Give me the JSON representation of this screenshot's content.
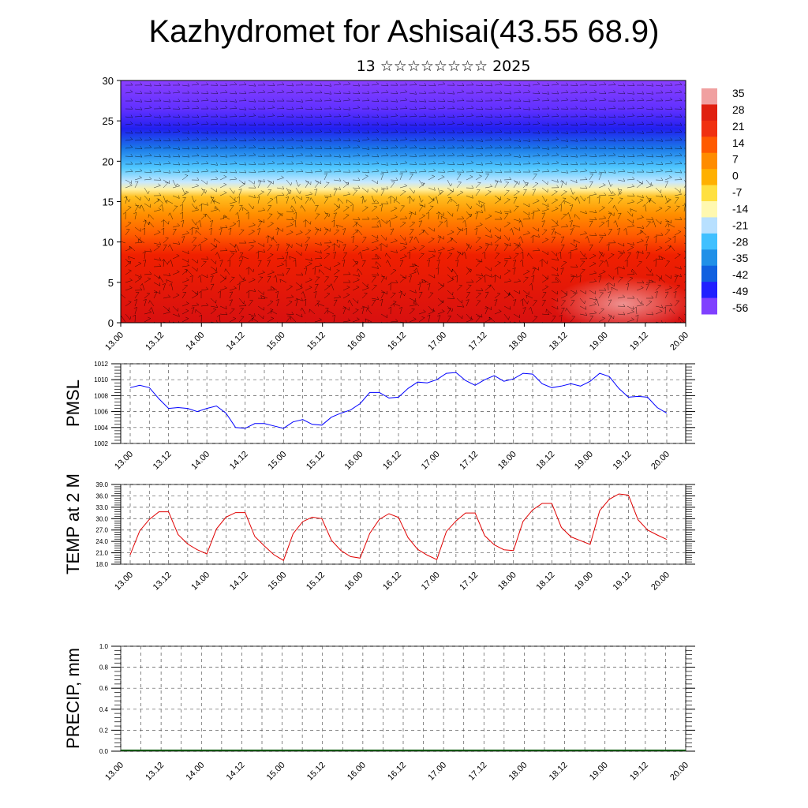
{
  "header": {
    "title": "Kazhydromet for Ashisai(43.55 68.9)",
    "subtitle": "13 ☆☆☆☆☆☆☆☆ 2025"
  },
  "time_labels": [
    "13.00",
    "13.12",
    "14.00",
    "14.12",
    "15.00",
    "15.12",
    "16.00",
    "16.12",
    "17.00",
    "17.12",
    "18.00",
    "18.12",
    "19.00",
    "19.12",
    "20.00"
  ],
  "colors": {
    "pmsl_line": "#0000ff",
    "temp_line": "#e00000",
    "precip_line": "#005500",
    "grid": "#555555"
  },
  "chart_data": [
    {
      "type": "heatmap",
      "title": "",
      "ylim": [
        0,
        30
      ],
      "y_ticks": [
        0,
        5,
        10,
        15,
        20,
        25,
        30
      ],
      "x_ticks": [
        "13.00",
        "13.12",
        "14.00",
        "14.12",
        "15.00",
        "15.12",
        "16.00",
        "16.12",
        "17.00",
        "17.12",
        "18.00",
        "18.12",
        "19.00",
        "19.12",
        "20.00"
      ],
      "colorbar_labels": [
        "35",
        "28",
        "21",
        "14",
        "7",
        "0",
        "-7",
        "-14",
        "-21",
        "-28",
        "-35",
        "-42",
        "-49",
        "-56"
      ],
      "colorbar_colors": [
        "#f0a0a0",
        "#e02010",
        "#f03010",
        "#ff5a00",
        "#ff8c00",
        "#ffb000",
        "#ffe040",
        "#fff8b0",
        "#b8e0ff",
        "#40c0ff",
        "#2090e8",
        "#1060e0",
        "#2020ff",
        "#8040ff"
      ],
      "overlay": "wind barbs"
    },
    {
      "type": "line",
      "ylabel": "PMSL",
      "ylim": [
        1002,
        1012
      ],
      "y_ticks": [
        1002,
        1004,
        1006,
        1008,
        1010,
        1012
      ],
      "x_ticks": [
        "13.00",
        "13.12",
        "14.00",
        "14.12",
        "15.00",
        "15.12",
        "16.00",
        "16.12",
        "17.00",
        "17.12",
        "18.00",
        "18.12",
        "19.00",
        "19.12",
        "20.00"
      ],
      "series": [
        {
          "values": [
            1009.0,
            1009.3,
            1009.0,
            1007.6,
            1006.4,
            1006.5,
            1006.4,
            1006.0,
            1006.4,
            1006.7,
            1005.8,
            1004.0,
            1003.9,
            1004.5,
            1004.5,
            1004.2,
            1003.9,
            1004.7,
            1005.0,
            1004.4,
            1004.3,
            1005.3,
            1005.8,
            1006.2,
            1007.0,
            1008.4,
            1008.4,
            1007.7,
            1007.8,
            1008.9,
            1009.7,
            1009.6,
            1010.0,
            1010.8,
            1010.9,
            1009.9,
            1009.3,
            1010.0,
            1010.5,
            1009.8,
            1010.1,
            1010.8,
            1010.7,
            1009.5,
            1009.0,
            1009.2,
            1009.5,
            1009.2,
            1009.8,
            1010.8,
            1010.4,
            1008.9,
            1007.8,
            1007.9,
            1007.8,
            1006.5,
            1005.8
          ]
        }
      ]
    },
    {
      "type": "line",
      "ylabel": "TEMP at 2 M",
      "ylim": [
        18.0,
        39.0
      ],
      "y_ticks": [
        "18.0",
        "21.0",
        "24.0",
        "27.0",
        "30.0",
        "33.0",
        "36.0",
        "39.0"
      ],
      "x_ticks": [
        "13.00",
        "13.12",
        "14.00",
        "14.12",
        "15.00",
        "15.12",
        "16.00",
        "16.12",
        "17.00",
        "17.12",
        "18.00",
        "18.12",
        "19.00",
        "19.12",
        "20.00"
      ],
      "series": [
        {
          "values": [
            20.5,
            26.8,
            29.8,
            31.8,
            31.8,
            25.8,
            23.3,
            21.8,
            20.7,
            27.3,
            30.4,
            31.6,
            31.6,
            25.3,
            22.8,
            20.5,
            19.0,
            26.0,
            29.2,
            30.4,
            30.0,
            24.3,
            21.6,
            20.0,
            19.6,
            26.1,
            29.8,
            31.3,
            30.3,
            25.0,
            21.9,
            20.4,
            19.2,
            26.6,
            29.4,
            31.5,
            31.5,
            25.5,
            23.1,
            21.8,
            21.6,
            29.3,
            32.3,
            34.0,
            34.0,
            27.7,
            25.2,
            24.2,
            23.2,
            32.1,
            35.1,
            36.5,
            36.2,
            29.7,
            27.0,
            25.7,
            24.5
          ]
        }
      ]
    },
    {
      "type": "line",
      "ylabel": "PRECIP, mm",
      "ylim": [
        0.0,
        1.0
      ],
      "y_ticks": [
        "0.0",
        "0.2",
        "0.4",
        "0.6",
        "0.8",
        "1.0"
      ],
      "x_ticks": [
        "13.00",
        "13.12",
        "14.00",
        "14.12",
        "15.00",
        "15.12",
        "16.00",
        "16.12",
        "17.00",
        "17.12",
        "18.00",
        "18.12",
        "19.00",
        "19.12",
        "20.00"
      ],
      "series": [
        {
          "values": [
            0,
            0,
            0,
            0,
            0,
            0,
            0,
            0,
            0,
            0,
            0,
            0,
            0,
            0,
            0,
            0,
            0,
            0,
            0,
            0,
            0,
            0,
            0,
            0,
            0,
            0,
            0,
            0,
            0,
            0,
            0,
            0,
            0,
            0,
            0,
            0,
            0,
            0,
            0,
            0,
            0,
            0,
            0,
            0,
            0,
            0,
            0,
            0,
            0,
            0,
            0,
            0,
            0,
            0,
            0,
            0,
            0
          ]
        }
      ]
    }
  ]
}
